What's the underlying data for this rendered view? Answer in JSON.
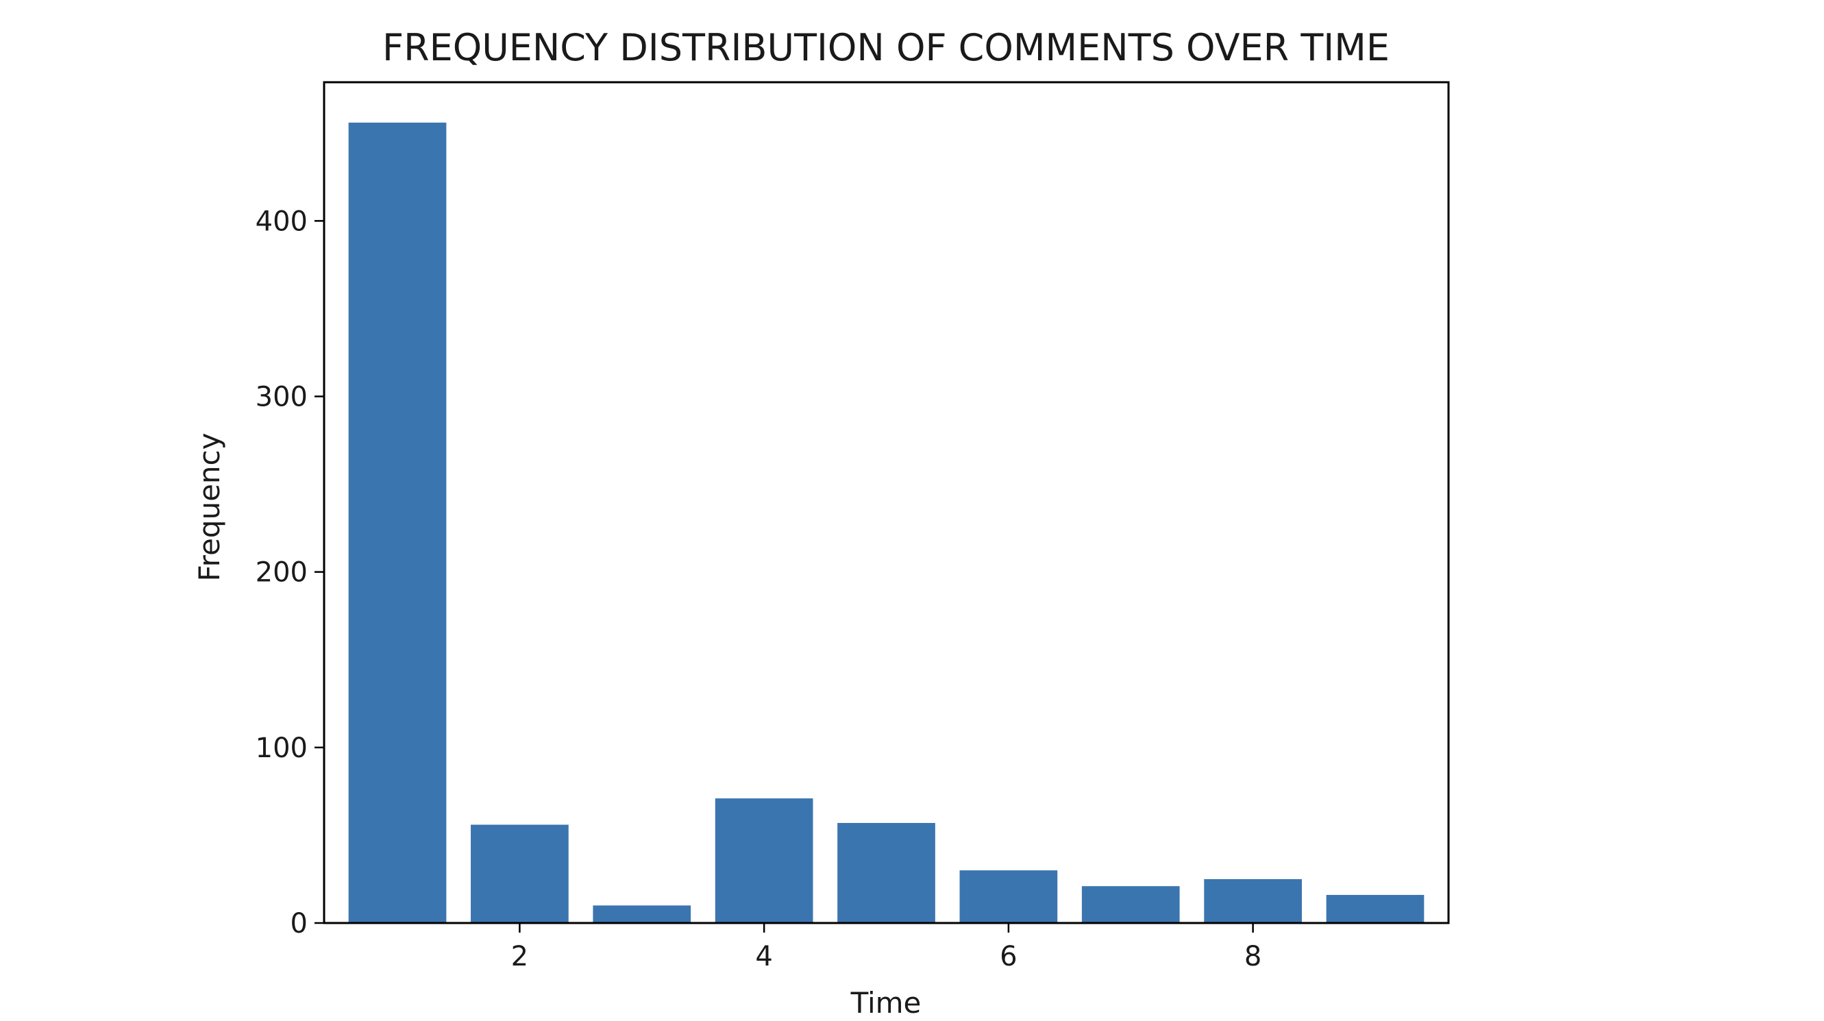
{
  "chart_data": {
    "type": "bar",
    "title": "FREQUENCY DISTRIBUTION OF COMMENTS OVER TIME",
    "xlabel": "Time",
    "ylabel": "Frequency",
    "x": [
      1,
      2,
      3,
      4,
      5,
      6,
      7,
      8,
      9
    ],
    "values": [
      456,
      56,
      10,
      71,
      57,
      30,
      21,
      25,
      16
    ],
    "xlim": [
      0.4,
      9.6
    ],
    "ylim": [
      0,
      479
    ],
    "xticks": [
      2,
      4,
      6,
      8
    ],
    "yticks": [
      0,
      100,
      200,
      300,
      400
    ],
    "bar_color": "#3b75af",
    "grid": false,
    "legend": "none"
  }
}
